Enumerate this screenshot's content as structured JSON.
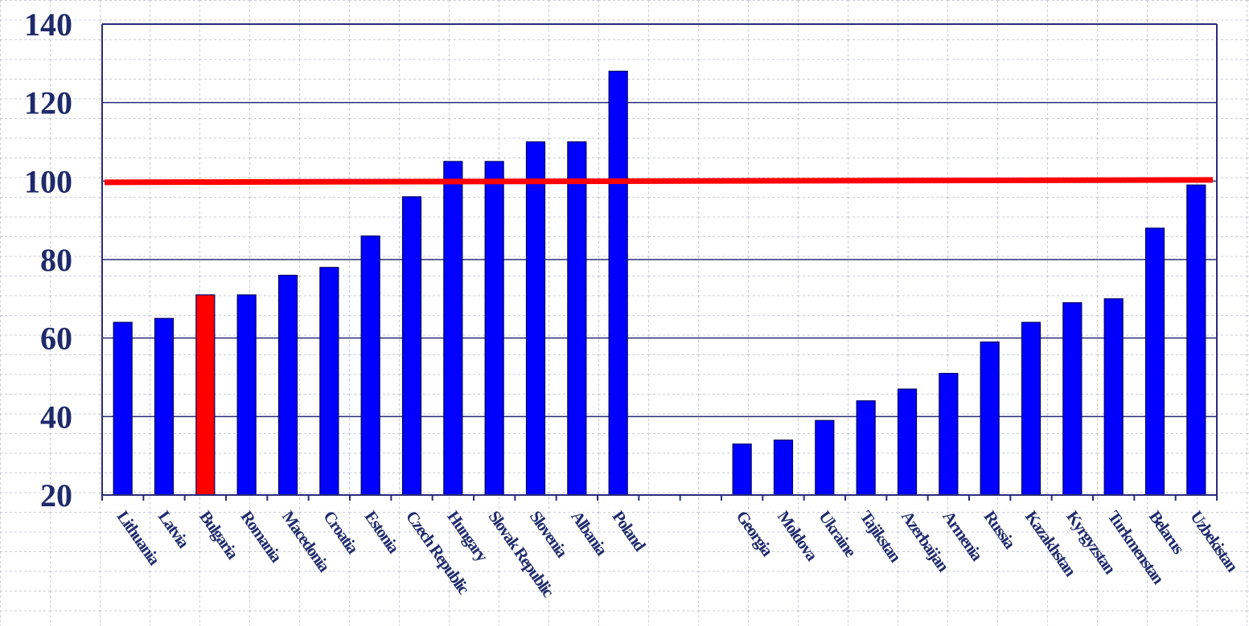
{
  "chart_data": {
    "type": "bar",
    "title": "",
    "xlabel": "",
    "ylabel": "",
    "ylim": [
      20,
      140
    ],
    "yticks": [
      20,
      40,
      60,
      80,
      100,
      120,
      140
    ],
    "grid": "horizontal",
    "categories": [
      "Lithuania",
      "Latvia",
      "Bulgaria",
      "Romania",
      "Macedonia",
      "Croatia",
      "Estonia",
      "Czech Republic",
      "Hungary",
      "Slovak Republic",
      "Slovenia",
      "Albania",
      "Poland",
      "",
      "",
      "Georgia",
      "Moldova",
      "Ukraine",
      "Tajikstan",
      "Azerbaijan",
      "Armenia",
      "Russia",
      "Kazakhstan",
      "Kyrgyzstan",
      "Turkmenstan",
      "Belarus",
      "Uzbekistan"
    ],
    "values": [
      64,
      65,
      71,
      71,
      76,
      78,
      86,
      96,
      105,
      105,
      110,
      110,
      128,
      null,
      null,
      33,
      34,
      39,
      44,
      47,
      51,
      59,
      64,
      69,
      70,
      88,
      99
    ],
    "highlight": {
      "category": "Bulgaria",
      "color": "#ff0000"
    },
    "reference_line": {
      "value": 100,
      "color": "#ff0000"
    },
    "colors": {
      "bar": "#0000ff",
      "bar_edge": "#000066",
      "axis": "#2b2b7a",
      "grid": "#2b2b7a",
      "text": "#1f2a6b"
    }
  }
}
